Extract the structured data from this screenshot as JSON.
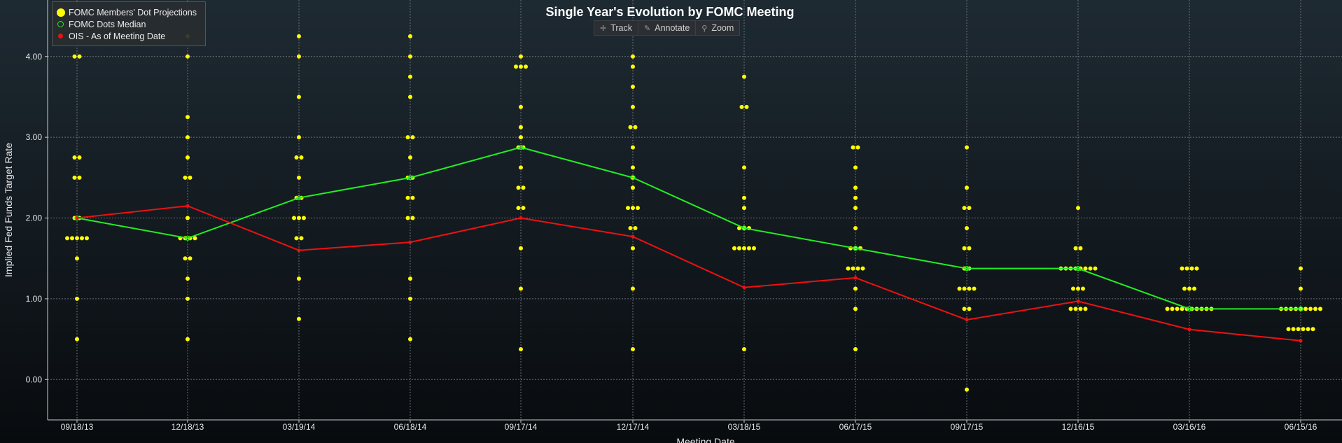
{
  "legend": {
    "items": [
      {
        "label": "FOMC Members' Dot Projections",
        "color": "#ffff00"
      },
      {
        "label": "FOMC Dots Median",
        "color": "#22ee22"
      },
      {
        "label": "OIS - As of Meeting Date",
        "color": "#ee1111"
      }
    ]
  },
  "toolbar": {
    "track_label": "Track",
    "annotate_label": "Annotate",
    "zoom_label": "Zoom"
  },
  "chart_data": {
    "type": "scatter",
    "title": "Single Year's Evolution by FOMC Meeting",
    "xlabel": "Meeting Date",
    "ylabel": "Implied Fed Funds Target Rate",
    "categories": [
      "09/18/13",
      "12/18/13",
      "03/19/14",
      "06/18/14",
      "09/17/14",
      "12/17/14",
      "03/18/15",
      "06/17/15",
      "09/17/15",
      "12/16/15",
      "03/16/16",
      "06/15/16"
    ],
    "ylim": [
      -0.5,
      4.7
    ],
    "yticks": [
      0.0,
      1.0,
      2.0,
      3.0,
      4.0
    ],
    "ytick_labels": [
      "0.00",
      "1.00",
      "2.00",
      "3.00",
      "4.00"
    ],
    "grid": true,
    "legend_position": "top-left",
    "colors": {
      "dots": "#ffff00",
      "median": "#22ee22",
      "ois": "#ee1111"
    },
    "series": [
      {
        "name": "FOMC Members' Dot Projections",
        "kind": "dots",
        "values": [
          [
            0.5,
            1.0,
            1.5,
            1.75,
            1.75,
            1.75,
            1.75,
            1.75,
            2.0,
            2.0,
            2.5,
            2.5,
            2.75,
            2.75,
            4.0,
            4.0
          ],
          [
            0.5,
            1.0,
            1.25,
            1.5,
            1.5,
            1.75,
            1.75,
            1.75,
            1.75,
            2.0,
            2.5,
            2.5,
            2.75,
            3.0,
            3.25,
            4.0,
            4.25
          ],
          [
            0.75,
            1.25,
            1.75,
            1.75,
            2.0,
            2.0,
            2.0,
            2.25,
            2.25,
            2.5,
            2.75,
            2.75,
            3.0,
            3.5,
            4.0,
            4.25
          ],
          [
            0.5,
            1.0,
            1.25,
            2.0,
            2.0,
            2.25,
            2.25,
            2.5,
            2.5,
            2.75,
            3.0,
            3.0,
            3.5,
            3.75,
            4.0,
            4.25
          ],
          [
            0.375,
            1.125,
            1.625,
            2.125,
            2.125,
            2.375,
            2.375,
            2.625,
            2.875,
            2.875,
            3.0,
            3.125,
            3.375,
            3.875,
            3.875,
            3.875,
            4.0
          ],
          [
            0.375,
            1.125,
            1.625,
            1.875,
            1.875,
            2.125,
            2.125,
            2.125,
            2.375,
            2.5,
            2.625,
            2.875,
            3.125,
            3.125,
            3.375,
            3.625,
            3.875,
            4.0
          ],
          [
            0.375,
            1.625,
            1.625,
            1.625,
            1.625,
            1.625,
            1.875,
            1.875,
            1.875,
            2.125,
            2.25,
            2.625,
            3.375,
            3.375,
            3.75
          ],
          [
            0.375,
            0.875,
            1.125,
            1.375,
            1.375,
            1.375,
            1.375,
            1.625,
            1.625,
            1.625,
            1.875,
            2.125,
            2.25,
            2.375,
            2.625,
            2.875,
            2.875
          ],
          [
            -0.125,
            0.875,
            0.875,
            1.125,
            1.125,
            1.125,
            1.125,
            1.375,
            1.375,
            1.625,
            1.625,
            1.875,
            2.125,
            2.125,
            2.375,
            2.875
          ],
          [
            0.875,
            0.875,
            0.875,
            0.875,
            1.125,
            1.125,
            1.125,
            1.375,
            1.375,
            1.375,
            1.375,
            1.375,
            1.375,
            1.375,
            1.375,
            1.625,
            1.625,
            2.125
          ],
          [
            0.875,
            0.875,
            0.875,
            0.875,
            0.875,
            0.875,
            0.875,
            0.875,
            0.875,
            0.875,
            1.125,
            1.125,
            1.125,
            1.375,
            1.375,
            1.375,
            1.375
          ],
          [
            0.625,
            0.625,
            0.625,
            0.625,
            0.625,
            0.625,
            0.875,
            0.875,
            0.875,
            0.875,
            0.875,
            0.875,
            0.875,
            0.875,
            0.875,
            1.125,
            1.375
          ]
        ]
      },
      {
        "name": "FOMC Dots Median",
        "kind": "line",
        "values": [
          2.0,
          1.75,
          2.25,
          2.5,
          2.875,
          2.5,
          1.875,
          1.625,
          1.375,
          1.375,
          0.875,
          0.875
        ]
      },
      {
        "name": "OIS - As of Meeting Date",
        "kind": "line",
        "values": [
          2.0,
          2.15,
          1.6,
          1.7,
          2.0,
          1.77,
          1.14,
          1.26,
          0.74,
          0.97,
          0.62,
          0.48
        ]
      }
    ]
  }
}
